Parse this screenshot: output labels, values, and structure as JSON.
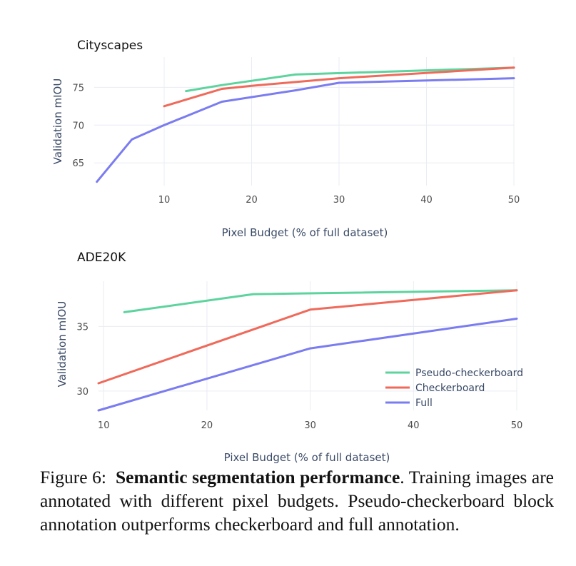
{
  "colors": {
    "pseudo": "#5dd39e",
    "checkerboard": "#ef6a5a",
    "full": "#7a7cf0"
  },
  "chart_data": [
    {
      "type": "line",
      "title": "Cityscapes",
      "xlabel": "Pixel Budget (% of full dataset)",
      "ylabel": "Validation mIOU",
      "xlim": [
        2,
        50
      ],
      "ylim": [
        62,
        79
      ],
      "xticks": [
        10,
        20,
        30,
        40,
        50
      ],
      "xtick_labels": [
        "10",
        "20",
        "30",
        "40",
        "50"
      ],
      "yticks": [
        65,
        70,
        75
      ],
      "grid": true,
      "series": [
        {
          "name": "Pseudo-checkerboard",
          "color": "#5dd39e",
          "x": [
            12.5,
            16.6,
            25,
            50
          ],
          "y": [
            74.5,
            75.3,
            76.7,
            77.6
          ]
        },
        {
          "name": "Checkerboard",
          "color": "#ef6a5a",
          "x": [
            10,
            16.6,
            20,
            30,
            50
          ],
          "y": [
            72.5,
            74.8,
            75.2,
            76.2,
            77.6
          ]
        },
        {
          "name": "Full",
          "color": "#7a7cf0",
          "x": [
            2.3,
            6.3,
            10,
            16.6,
            25,
            30,
            50
          ],
          "y": [
            62.5,
            68.1,
            70.0,
            73.1,
            74.6,
            75.6,
            76.2
          ]
        }
      ]
    },
    {
      "type": "line",
      "title": "ADE20K",
      "xlabel": "Pixel Budget (% of full dataset)",
      "ylabel": "Validation mIOU",
      "xlim": [
        9.5,
        50
      ],
      "ylim": [
        28.5,
        38.5
      ],
      "xticks": [
        10,
        20,
        30,
        40,
        50
      ],
      "xtick_labels": [
        "10",
        "20",
        "30",
        "40",
        "50"
      ],
      "yticks": [
        30,
        35
      ],
      "grid": true,
      "legend": "bottom-right",
      "series": [
        {
          "name": "Pseudo-checkerboard",
          "color": "#5dd39e",
          "x": [
            12,
            24.5,
            50
          ],
          "y": [
            36.1,
            37.5,
            37.8
          ]
        },
        {
          "name": "Checkerboard",
          "color": "#ef6a5a",
          "x": [
            9.5,
            30,
            50
          ],
          "y": [
            30.6,
            36.3,
            37.8
          ]
        },
        {
          "name": "Full",
          "color": "#7a7cf0",
          "x": [
            9.5,
            30,
            50
          ],
          "y": [
            28.5,
            33.3,
            35.6
          ]
        }
      ]
    }
  ],
  "caption": {
    "label": "Figure 6:",
    "bold": "Semantic segmentation performance",
    "text": ". Training images are annotated with different pixel budgets. Pseudo-checkerboard block annotation outperforms checkerboard and full annotation."
  }
}
